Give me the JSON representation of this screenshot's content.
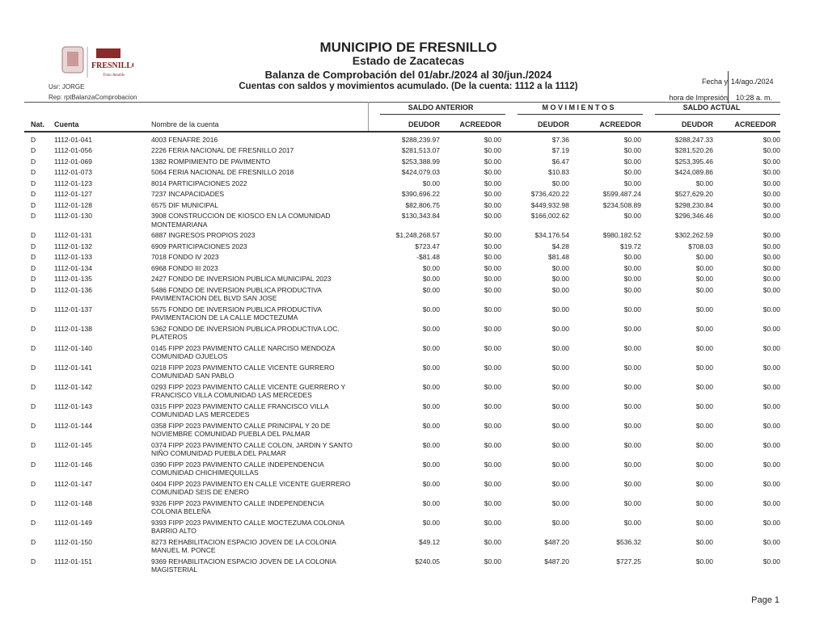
{
  "header": {
    "logo_text": "FRESNILLO",
    "title": "MUNICIPIO DE FRESNILLO",
    "state": "Estado de Zacatecas",
    "report": "Balanza de Comprobación del 01/abr./2024 al 30/jun./2024",
    "subtitle": "Cuentas con saldos y movimientos acumulado. (De la cuenta: 1112 a la 1112)",
    "user": "Usr: JORGE",
    "rep": "Rep: rptBalanzaComprobacion",
    "fecha_label": "Fecha y",
    "fecha_value": "14/ago./2024",
    "hora_label": "hora de Impresión",
    "hora_value": "10:28 a. m."
  },
  "groups": {
    "saldo_anterior": "SALDO ANTERIOR",
    "movimientos": "M O V I M I E N T O S",
    "saldo_actual": "SALDO ACTUAL"
  },
  "columns": {
    "nat": "Nat.",
    "cuenta": "Cuenta",
    "nombre": "Nombre de la cuenta",
    "deudor": "DEUDOR",
    "acreedor": "ACREEDOR"
  },
  "rows": [
    [
      "D",
      "1112-01-041",
      "4003 FENAFRE 2016",
      "$288,239.97",
      "$0.00",
      "$7.36",
      "$0.00",
      "$288,247.33",
      "$0.00"
    ],
    [
      "D",
      "1112-01-056",
      "2226 FERIA NACIONAL DE FRESNILLO 2017",
      "$281,513.07",
      "$0.00",
      "$7.19",
      "$0.00",
      "$281,520.26",
      "$0.00"
    ],
    [
      "D",
      "1112-01-069",
      "1382 ROMPIMIENTO DE PAVIMENTO",
      "$253,388.99",
      "$0.00",
      "$6.47",
      "$0.00",
      "$253,395.46",
      "$0.00"
    ],
    [
      "D",
      "1112-01-073",
      "5064 FERIA NACIONAL DE FRESNILLO 2018",
      "$424,079.03",
      "$0.00",
      "$10.83",
      "$0.00",
      "$424,089.86",
      "$0.00"
    ],
    [
      "D",
      "1112-01-123",
      "8014 PARTICIPACIONES 2022",
      "$0.00",
      "$0.00",
      "$0.00",
      "$0.00",
      "$0.00",
      "$0.00"
    ],
    [
      "D",
      "1112-01-127",
      "7237 INCAPACIDADES",
      "$390,696.22",
      "$0.00",
      "$736,420.22",
      "$599,487.24",
      "$527,629.20",
      "$0.00"
    ],
    [
      "D",
      "1112-01-128",
      "6575 DIF MUNICIPAL",
      "$82,806.75",
      "$0.00",
      "$449,932.98",
      "$234,508.89",
      "$298,230.84",
      "$0.00"
    ],
    [
      "D",
      "1112-01-130",
      "3908 CONSTRUCCION DE KIOSCO EN LA COMUNIDAD MONTEMARIANA",
      "$130,343.84",
      "$0.00",
      "$166,002.62",
      "$0.00",
      "$296,346.46",
      "$0.00"
    ],
    [
      "D",
      "1112-01-131",
      "6887 INGRESOS PROPIOS 2023",
      "$1,248,268.57",
      "$0.00",
      "$34,176.54",
      "$980,182.52",
      "$302,262.59",
      "$0.00"
    ],
    [
      "D",
      "1112-01-132",
      "6909 PARTICIPACIONES 2023",
      "$723.47",
      "$0.00",
      "$4.28",
      "$19.72",
      "$708.03",
      "$0.00"
    ],
    [
      "D",
      "1112-01-133",
      "7018 FONDO IV 2023",
      "-$81.48",
      "$0.00",
      "$81.48",
      "$0.00",
      "$0.00",
      "$0.00"
    ],
    [
      "D",
      "1112-01-134",
      "6968 FONDO III 2023",
      "$0.00",
      "$0.00",
      "$0.00",
      "$0.00",
      "$0.00",
      "$0.00"
    ],
    [
      "D",
      "1112-01-135",
      "2427 FONDO DE INVERSION PUBLICA MUNICIPAL 2023",
      "$0.00",
      "$0.00",
      "$0.00",
      "$0.00",
      "$0.00",
      "$0.00"
    ],
    [
      "D",
      "1112-01-136",
      "5486 FONDO DE INVERSION PUBLICA PRODUCTIVA PAVIMENTACION DEL BLVD SAN JOSE",
      "$0.00",
      "$0.00",
      "$0.00",
      "$0.00",
      "$0.00",
      "$0.00"
    ],
    [
      "D",
      "1112-01-137",
      "5575 FONDO DE INVERSION PUBLICA PRODUCTIVA PAVIMENTACION DE LA CALLE MOCTEZUMA",
      "$0.00",
      "$0.00",
      "$0.00",
      "$0.00",
      "$0.00",
      "$0.00"
    ],
    [
      "D",
      "1112-01-138",
      "5362 FONDO DE INVERSION PUBLICA PRODUCTIVA LOC. PLATEROS",
      "$0.00",
      "$0.00",
      "$0.00",
      "$0.00",
      "$0.00",
      "$0.00"
    ],
    [
      "D",
      "1112-01-140",
      "0145 FIPP 2023 PAVIMENTO CALLE NARCISO MENDOZA COMUNIDAD OJUELOS",
      "$0.00",
      "$0.00",
      "$0.00",
      "$0.00",
      "$0.00",
      "$0.00"
    ],
    [
      "D",
      "1112-01-141",
      "0218 FIPP 2023 PAVIMENTO CALLE VICENTE GURRERO COMUNIDAD SAN PABLO",
      "$0.00",
      "$0.00",
      "$0.00",
      "$0.00",
      "$0.00",
      "$0.00"
    ],
    [
      "D",
      "1112-01-142",
      "0293 FIPP 2023 PAVIMENTO CALLE VICENTE GUERRERO Y FRANCISCO VILLA COMUNIDAD LAS MERCEDES",
      "$0.00",
      "$0.00",
      "$0.00",
      "$0.00",
      "$0.00",
      "$0.00"
    ],
    [
      "D",
      "1112-01-143",
      "0315 FIPP 2023 PAVIMENTO CALLE FRANCISCO VILLA COMUNIDAD LAS MERCEDES",
      "$0.00",
      "$0.00",
      "$0.00",
      "$0.00",
      "$0.00",
      "$0.00"
    ],
    [
      "D",
      "1112-01-144",
      "0358 FIPP 2023 PAVIMENTO CALLE PRINCIPAL Y 20 DE NOVIEMBRE COMUNIDAD PUEBLA DEL PALMAR",
      "$0.00",
      "$0.00",
      "$0.00",
      "$0.00",
      "$0.00",
      "$0.00"
    ],
    [
      "D",
      "1112-01-145",
      "0374 FIPP 2023 PAVIMENTO CALLE COLON, JARDIN Y SANTO NIÑO COMUNIDAD PUEBLA DEL PALMAR",
      "$0.00",
      "$0.00",
      "$0.00",
      "$0.00",
      "$0.00",
      "$0.00"
    ],
    [
      "D",
      "1112-01-146",
      "0390 FIPP 2023 PAVIMENTO CALLE INDEPENDENCIA COMUNIDAD CHICHIMEQUILLAS",
      "$0.00",
      "$0.00",
      "$0.00",
      "$0.00",
      "$0.00",
      "$0.00"
    ],
    [
      "D",
      "1112-01-147",
      "0404 FIPP 2023 PAVIMENTO EN CALLE VICENTE GUERRERO COMUNIDAD SEIS DE ENERO",
      "$0.00",
      "$0.00",
      "$0.00",
      "$0.00",
      "$0.00",
      "$0.00"
    ],
    [
      "D",
      "1112-01-148",
      "9326 FIPP 2023 PAVIMENTO CALLE INDEPENDENCIA COLONIA BELEÑA",
      "$0.00",
      "$0.00",
      "$0.00",
      "$0.00",
      "$0.00",
      "$0.00"
    ],
    [
      "D",
      "1112-01-149",
      "9393 FIPP 2023 PAVIMENTO CALLE MOCTEZUMA COLONIA BARRIO ALTO",
      "$0.00",
      "$0.00",
      "$0.00",
      "$0.00",
      "$0.00",
      "$0.00"
    ],
    [
      "D",
      "1112-01-150",
      "8273 REHABILITACION ESPACIO JOVEN DE LA COLONIA MANUEL M. PONCE",
      "$49.12",
      "$0.00",
      "$487.20",
      "$536.32",
      "$0.00",
      "$0.00"
    ],
    [
      "D",
      "1112-01-151",
      "9369 REHABILITACION ESPACIO JOVEN DE LA COLONIA MAGISTERIAL",
      "$240.05",
      "$0.00",
      "$487.20",
      "$727.25",
      "$0.00",
      "$0.00"
    ]
  ],
  "footer": {
    "page": "Page 1"
  }
}
